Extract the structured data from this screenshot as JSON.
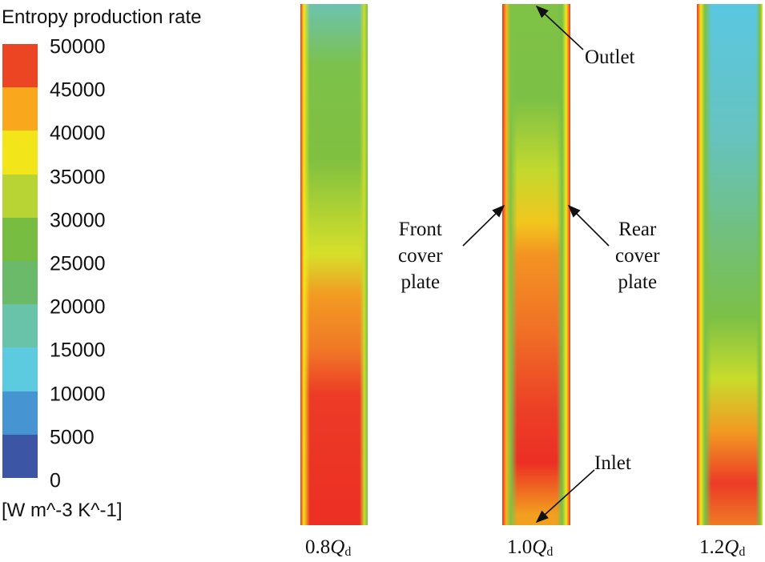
{
  "chart_data": {
    "type": "heatmap",
    "colorbar": {
      "title": "Entropy production rate",
      "unit": "[W m^-3 K^-1]",
      "ticks": [
        "50000",
        "45000",
        "40000",
        "35000",
        "30000",
        "25000",
        "20000",
        "15000",
        "10000",
        "5000",
        "0"
      ],
      "range": [
        0,
        50000
      ],
      "band_colors": [
        "#ec4524",
        "#f9a71c",
        "#f2e61a",
        "#b7d334",
        "#77bd42",
        "#6aba6a",
        "#69c3a8",
        "#5ccbe0",
        "#4695d2",
        "#3c55a4"
      ]
    },
    "panels": [
      {
        "label_num": "0.8",
        "label_var": "Q",
        "label_sub": "d"
      },
      {
        "label_num": "1.0",
        "label_var": "Q",
        "label_sub": "d"
      },
      {
        "label_num": "1.2",
        "label_var": "Q",
        "label_sub": "d"
      }
    ],
    "annotations": {
      "outlet": "Outlet",
      "inlet": "Inlet",
      "front": [
        "Front",
        "cover",
        "plate"
      ],
      "rear": [
        "Rear",
        "cover",
        "plate"
      ]
    }
  }
}
